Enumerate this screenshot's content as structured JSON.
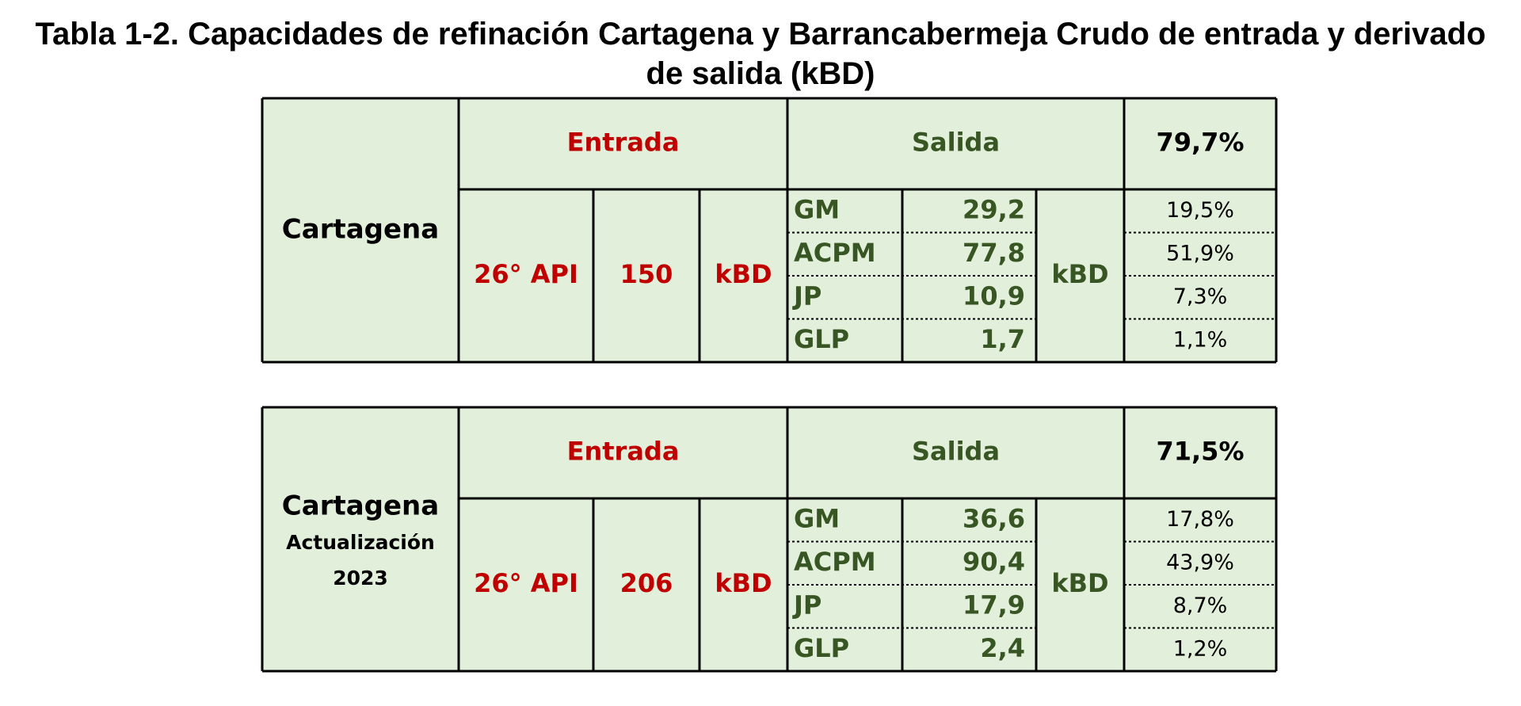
{
  "title": "Tabla 1-2. Capacidades de refinación Cartagena y Barrancabermeja Crudo de entrada y derivado de salida (kBD)",
  "tables": [
    {
      "label": "Cartagena",
      "entrada_header": "Entrada",
      "salida_header": "Salida",
      "total_share": "79,7%",
      "crude": "26° API",
      "capacity": "150",
      "capacity_unit": "kBD",
      "output_unit": "kBD",
      "products": [
        {
          "name": "GM",
          "output": "29,2",
          "share": "19,5%"
        },
        {
          "name": "ACPM",
          "output": "77,8",
          "share": "51,9%"
        },
        {
          "name": "JP",
          "output": "10,9",
          "share": "7,3%"
        },
        {
          "name": "GLP",
          "output": "1,7",
          "share": "1,1%"
        }
      ]
    },
    {
      "label": "Cartagena",
      "sublabel": [
        "Actualización",
        "2023"
      ],
      "entrada_header": "Entrada",
      "salida_header": "Salida",
      "total_share": "71,5%",
      "crude": "26° API",
      "capacity": "206",
      "capacity_unit": "kBD",
      "output_unit": "kBD",
      "products": [
        {
          "name": "GM",
          "output": "36,6",
          "share": "17,8%"
        },
        {
          "name": "ACPM",
          "output": "90,4",
          "share": "43,9%"
        },
        {
          "name": "JP",
          "output": "17,9",
          "share": "8,7%"
        },
        {
          "name": "GLP",
          "output": "2,4",
          "share": "1,2%"
        }
      ]
    }
  ]
}
